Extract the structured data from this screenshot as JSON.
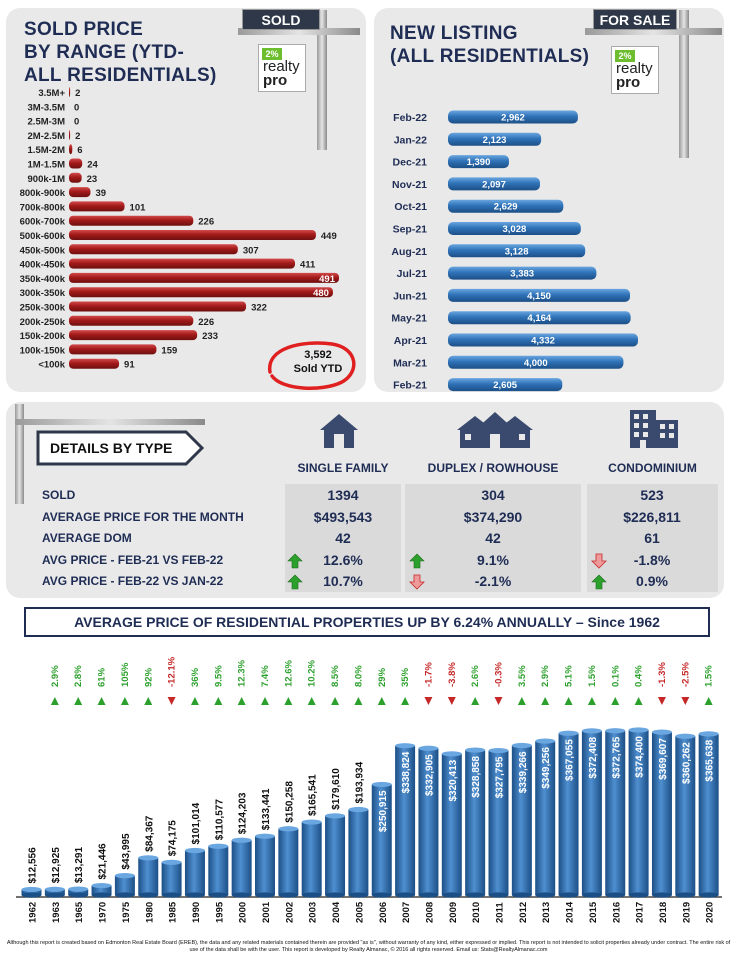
{
  "sold_panel": {
    "title_lines": [
      "SOLD PRICE",
      "BY RANGE (YTD-",
      "ALL RESIDENTIALS)"
    ],
    "sign": "SOLD",
    "total_value": "3,592",
    "total_label": "Sold YTD"
  },
  "listing_panel": {
    "title_lines": [
      "NEW LISTING",
      "(ALL RESIDENTIALS)"
    ],
    "sign": "FOR SALE"
  },
  "logo": {
    "line1": "2%",
    "line2": "realty",
    "line3": "pro"
  },
  "details": {
    "title": "DETAILS BY TYPE",
    "columns": [
      "SINGLE FAMILY",
      "DUPLEX / ROWHOUSE",
      "CONDOMINIUM"
    ],
    "rows": [
      {
        "label": "SOLD",
        "values": [
          "1394",
          "304",
          "523"
        ],
        "arrows": []
      },
      {
        "label": "AVERAGE PRICE FOR THE MONTH",
        "values": [
          "$493,543",
          "$374,290",
          "$226,811"
        ],
        "arrows": []
      },
      {
        "label": "AVERAGE DOM",
        "values": [
          "42",
          "42",
          "61"
        ],
        "arrows": []
      },
      {
        "label": "AVG PRICE - FEB-21 VS FEB-22",
        "values": [
          "12.6%",
          "9.1%",
          "-1.8%"
        ],
        "arrows": [
          "up",
          "up",
          "down"
        ]
      },
      {
        "label": "AVG PRICE - FEB-22 VS JAN-22",
        "values": [
          "10.7%",
          "-2.1%",
          "0.9%"
        ],
        "arrows": [
          "up",
          "down",
          "up"
        ]
      }
    ]
  },
  "banner": "AVERAGE PRICE OF RESIDENTIAL PROPERTIES UP BY 6.24% ANNUALLY – Since 1962",
  "footer": "Although this report is created based on Edmonton Real Estate Board (EREB), the data and any related materials contained therein are provided \"as is\", without warranty of any kind, either expressed or implied. This report is not intended to solicit properties already under contract. The entire risk of use of the data shall be with the user. This report is developed by Realty Almanac, © 2016 all rights reserved. Email us: Stats@RealtyAlmanac.com",
  "colors": {
    "red_bar": "#a31a1a",
    "blue_bar": "#2f73b8",
    "navy": "#1f2d55",
    "up": "#2ca02c",
    "down": "#c62828"
  },
  "chart_data": [
    {
      "type": "bar",
      "orientation": "horizontal",
      "title": "SOLD PRICE BY RANGE (YTD- ALL RESIDENTIALS)",
      "categories": [
        "3.5M+",
        "3M-3.5M",
        "2.5M-3M",
        "2M-2.5M",
        "1.5M-2M",
        "1M-1.5M",
        "900k-1M",
        "800k-900k",
        "700k-800k",
        "600k-700k",
        "500k-600k",
        "450k-500k",
        "400k-450k",
        "350k-400k",
        "300k-350k",
        "250k-300k",
        "200k-250k",
        "150k-200k",
        "100k-150k",
        "<100k"
      ],
      "values": [
        2,
        0,
        0,
        2,
        6,
        24,
        23,
        39,
        101,
        226,
        449,
        307,
        411,
        491,
        480,
        322,
        226,
        233,
        159,
        91
      ],
      "labels": [
        "2",
        "0",
        "0",
        "2",
        "6",
        "24",
        "23",
        "39",
        "101",
        "226",
        "449",
        "307",
        "411",
        "491",
        "480",
        "322",
        "226",
        "233",
        "159",
        "91"
      ]
    },
    {
      "type": "bar",
      "orientation": "horizontal",
      "title": "NEW LISTING (ALL RESIDENTIALS)",
      "categories": [
        "Feb-22",
        "Jan-22",
        "Dec-21",
        "Nov-21",
        "Oct-21",
        "Sep-21",
        "Aug-21",
        "Jul-21",
        "Jun-21",
        "May-21",
        "Apr-21",
        "Mar-21",
        "Feb-21"
      ],
      "values": [
        2962,
        2123,
        1390,
        2097,
        2629,
        3028,
        3128,
        3383,
        4150,
        4164,
        4332,
        4000,
        2605
      ],
      "labels": [
        "2,962",
        "2,123",
        "1,390",
        "2,097",
        "2,629",
        "3,028",
        "3,128",
        "3,383",
        "4,150",
        "4,164",
        "4,332",
        "4,000",
        "2,605"
      ]
    },
    {
      "type": "bar",
      "title": "AVERAGE PRICE OF RESIDENTIAL PROPERTIES UP BY 6.24% ANNUALLY – Since 1962",
      "categories": [
        "1962",
        "1963",
        "1965",
        "1970",
        "1975",
        "1980",
        "1985",
        "1990",
        "1995",
        "2000",
        "2001",
        "2002",
        "2003",
        "2004",
        "2005",
        "2006",
        "2007",
        "2008",
        "2009",
        "2010",
        "2011",
        "2012",
        "2013",
        "2014",
        "2015",
        "2016",
        "2017",
        "2018",
        "2019",
        "2020"
      ],
      "values": [
        12556,
        12925,
        13291,
        21446,
        43995,
        84367,
        74175,
        101014,
        110577,
        124203,
        133441,
        150258,
        165541,
        179610,
        193934,
        250915,
        338824,
        332905,
        320413,
        328858,
        327795,
        339266,
        349256,
        367055,
        372408,
        372765,
        374400,
        369607,
        360262,
        365638
      ],
      "labels": [
        "$12,556",
        "$12,925",
        "$13,291",
        "$21,446",
        "$43,995",
        "$84,367",
        "$74,175",
        "$101,014",
        "$110,577",
        "$124,203",
        "$133,441",
        "$150,258",
        "$165,541",
        "$179,610",
        "$193,934",
        "$250,915",
        "$338,824",
        "$332,905",
        "$320,413",
        "$328,858",
        "$327,795",
        "$339,266",
        "$349,256",
        "$367,055",
        "$372,408",
        "$372,765",
        "$374,400",
        "$369,607",
        "$360,262",
        "$365,638"
      ],
      "changes": [
        "",
        "2.9%",
        "2.8%",
        "61%",
        "105%",
        "92%",
        "-12.1%",
        "36%",
        "9.5%",
        "12.3%",
        "7.4%",
        "12.6%",
        "10.2%",
        "8.5%",
        "8.0%",
        "29%",
        "35%",
        "-1.7%",
        "-3.8%",
        "2.6%",
        "-0.3%",
        "3.5%",
        "2.9%",
        "5.1%",
        "1.5%",
        "0.1%",
        "0.4%",
        "-1.3%",
        "-2.5%",
        "1.5%"
      ]
    }
  ]
}
